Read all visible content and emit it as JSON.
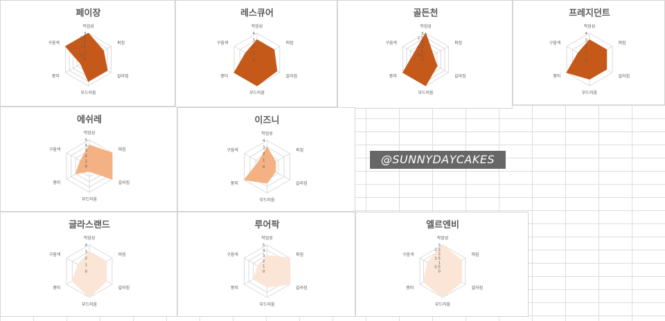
{
  "chart_data": [
    {
      "type": "radar",
      "title": "페이장",
      "categories": [
        "작업성",
        "퍼짐",
        "갈라짐",
        "부드러움",
        "풍미",
        "구움색"
      ],
      "values": [
        3,
        2,
        2.5,
        2.5,
        1,
        3
      ],
      "rmax": 3,
      "ticks": [
        "3",
        "2.5",
        "2",
        "1.5",
        "1",
        "0.5",
        "0"
      ],
      "fill": "#c5591a"
    },
    {
      "type": "radar",
      "title": "레스큐어",
      "categories": [
        "작업성",
        "퍼짐",
        "갈라짐",
        "부드러움",
        "풍미",
        "구움색"
      ],
      "values": [
        3,
        3,
        3.5,
        4,
        4,
        2
      ],
      "rmax": 4,
      "ticks": [
        "4",
        "3",
        "2",
        "1",
        "0"
      ],
      "fill": "#c5591a"
    },
    {
      "type": "radar",
      "title": "골든천",
      "categories": [
        "작업성",
        "퍼짐",
        "갈라짐",
        "부드러움",
        "풍미",
        "구움색"
      ],
      "values": [
        3,
        1,
        1.5,
        3,
        3,
        1.5
      ],
      "rmax": 3,
      "ticks": [
        "3",
        "2.5",
        "2",
        "1.5",
        "1",
        "0.5",
        "0"
      ],
      "fill": "#c5591a"
    },
    {
      "type": "radar",
      "title": "프레지던트",
      "categories": [
        "작업성",
        "퍼짐",
        "갈라짐",
        "부드러움",
        "풍미",
        "구움색"
      ],
      "values": [
        3,
        3,
        3,
        3,
        4,
        2
      ],
      "rmax": 4,
      "ticks": [
        "4",
        "3",
        "2",
        "1",
        "0"
      ],
      "fill": "#c5591a"
    },
    {
      "type": "radar",
      "title": "에쉬레",
      "categories": [
        "작업성",
        "퍼짐",
        "갈라짐",
        "부드러움",
        "풍미",
        "구움색"
      ],
      "values": [
        4,
        5,
        5,
        1,
        3,
        2
      ],
      "rmax": 5,
      "ticks": [
        "5",
        "4",
        "3",
        "2",
        "1",
        "0"
      ],
      "fill": "#f4b183"
    },
    {
      "type": "radar",
      "title": "이즈니",
      "categories": [
        "작업성",
        "퍼짐",
        "갈라짐",
        "부드러움",
        "풍미",
        "구움색"
      ],
      "values": [
        3,
        1.5,
        1.5,
        2.5,
        4,
        1.5
      ],
      "rmax": 4,
      "ticks": [
        "4",
        "3",
        "2",
        "1",
        "0"
      ],
      "fill": "#f4b183"
    },
    {
      "type": "radar",
      "title": "글라스랜드",
      "categories": [
        "작업성",
        "퍼짐",
        "갈라짐",
        "부드러움",
        "풍미",
        "구움색"
      ],
      "values": [
        3,
        3,
        3,
        4,
        3,
        2
      ],
      "rmax": 4,
      "ticks": [
        "4",
        "3",
        "2",
        "1",
        "0"
      ],
      "fill": "#fbe5d6"
    },
    {
      "type": "radar",
      "title": "루어팍",
      "categories": [
        "작업성",
        "퍼짐",
        "갈라짐",
        "부드러움",
        "풍미",
        "구움색"
      ],
      "values": [
        3,
        5,
        5,
        3,
        3,
        2
      ],
      "rmax": 5,
      "ticks": [
        "5",
        "4",
        "3",
        "2",
        "1",
        "0"
      ],
      "fill": "#fbe5d6"
    },
    {
      "type": "radar",
      "title": "엘르엔비",
      "categories": [
        "작업성",
        "퍼짐",
        "갈라짐",
        "부드러움",
        "풍미",
        "구움색"
      ],
      "values": [
        3,
        2.5,
        2.5,
        3,
        2.5,
        2
      ],
      "rmax": 3,
      "ticks": [
        "3",
        "2.5",
        "2",
        "1.5",
        "1",
        "0.5",
        "0"
      ],
      "fill": "#fbe5d6"
    }
  ],
  "watermark": "@SUNNYDAYCAKES",
  "colors": {
    "grid": "#d9d9d9",
    "title": "#595959",
    "label": "#595959"
  }
}
